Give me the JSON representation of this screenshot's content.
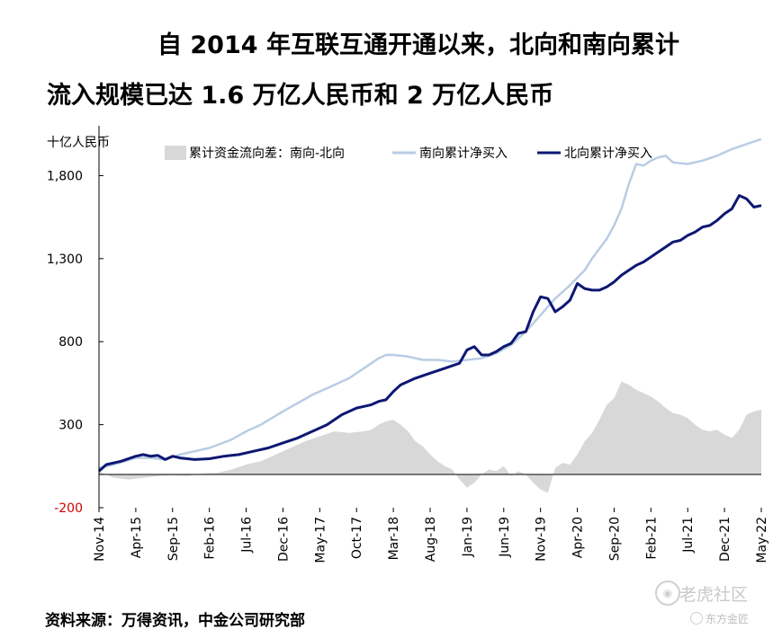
{
  "title_line1": "自 2014 年互联互通开通以来，北向和南向累计",
  "title_line2": "流入规模已达 1.6 万亿人民币和 2 万亿人民币",
  "source": "资料来源：万得资讯，中金公司研究部",
  "watermark": {
    "main": "老虎社区",
    "sub": "东方金匠"
  },
  "colors": {
    "south": "#b9cde4",
    "north": "#0d1773",
    "diff": "#d8d8d8",
    "axis": "#000000",
    "negative_label": "#d00000"
  },
  "chart_data": {
    "type": "line",
    "title": "自 2014 年互联互通开通以来，北向和南向累计流入规模已达 1.6 万亿人民币和 2 万亿人民币",
    "ylabel": "十亿人民币",
    "ylim": [
      -200,
      2100
    ],
    "yticks": [
      -200,
      300,
      800,
      1300,
      1800
    ],
    "ytick_labels": [
      "-200",
      "300",
      "800",
      "1,300",
      "1,800"
    ],
    "xlim": [
      0,
      90
    ],
    "x_tick_positions": [
      0,
      5,
      10,
      15,
      20,
      25,
      30,
      35,
      40,
      45,
      50,
      55,
      60,
      65,
      70,
      75,
      80,
      85,
      90
    ],
    "x_tick_labels": [
      "Nov-14",
      "Apr-15",
      "Sep-15",
      "Feb-16",
      "Jul-16",
      "Dec-16",
      "May-17",
      "Oct-17",
      "Mar-18",
      "Aug-18",
      "Jan-19",
      "Jun-19",
      "Nov-19",
      "Apr-20",
      "Sep-20",
      "Feb-21",
      "Jul-21",
      "Dec-21",
      "May-22"
    ],
    "legend": [
      "累计资金流向差：南向-北向",
      "南向累计净买入",
      "北向累计净买入"
    ],
    "series": [
      {
        "name": "南向累计净买入",
        "kind": "line",
        "x": [
          0,
          2,
          5,
          7,
          9,
          11,
          13,
          15,
          18,
          20,
          22,
          25,
          27,
          29,
          31,
          34,
          36,
          38,
          39,
          40,
          42,
          44,
          46,
          48,
          50,
          52,
          54,
          56,
          58,
          60,
          62,
          64,
          66,
          67,
          68,
          69,
          70,
          71,
          72,
          73,
          74,
          75,
          76,
          77,
          78,
          80,
          82,
          84,
          86,
          88,
          90
        ],
        "values": [
          40,
          60,
          100,
          100,
          90,
          120,
          140,
          160,
          210,
          260,
          300,
          380,
          430,
          480,
          520,
          580,
          640,
          700,
          720,
          720,
          710,
          690,
          690,
          680,
          690,
          700,
          730,
          780,
          860,
          960,
          1060,
          1140,
          1230,
          1300,
          1360,
          1420,
          1500,
          1600,
          1750,
          1870,
          1860,
          1890,
          1910,
          1920,
          1880,
          1870,
          1890,
          1920,
          1960,
          1990,
          2020
        ]
      },
      {
        "name": "北向累计净买入",
        "kind": "line",
        "x": [
          0,
          1,
          3,
          5,
          6,
          7,
          8,
          9,
          10,
          11,
          12,
          13,
          15,
          17,
          19,
          21,
          23,
          25,
          27,
          29,
          31,
          33,
          35,
          36,
          37,
          38,
          39,
          40,
          41,
          43,
          45,
          47,
          49,
          50,
          51,
          52,
          53,
          54,
          55,
          56,
          57,
          58,
          59,
          60,
          61,
          62,
          63,
          64,
          65,
          66,
          67,
          68,
          69,
          70,
          71,
          72,
          73,
          74,
          75,
          76,
          77,
          78,
          79,
          80,
          81,
          82,
          83,
          84,
          85,
          86,
          87,
          88,
          89,
          90
        ],
        "values": [
          20,
          60,
          80,
          110,
          120,
          110,
          115,
          90,
          110,
          100,
          95,
          90,
          95,
          110,
          120,
          140,
          160,
          190,
          220,
          260,
          300,
          360,
          400,
          410,
          420,
          440,
          450,
          500,
          540,
          580,
          610,
          640,
          670,
          750,
          770,
          720,
          720,
          740,
          770,
          790,
          850,
          860,
          980,
          1070,
          1060,
          980,
          1010,
          1050,
          1150,
          1120,
          1110,
          1110,
          1130,
          1160,
          1200,
          1230,
          1260,
          1280,
          1310,
          1340,
          1370,
          1400,
          1410,
          1440,
          1460,
          1490,
          1500,
          1530,
          1570,
          1600,
          1680,
          1660,
          1610,
          1620
        ]
      },
      {
        "name": "累计资金流向差：南向-北向",
        "kind": "area",
        "x": [
          0,
          2,
          4,
          6,
          8,
          10,
          12,
          14,
          16,
          18,
          20,
          22,
          24,
          26,
          28,
          30,
          32,
          34,
          36,
          37,
          38,
          39,
          40,
          41,
          42,
          43,
          44,
          45,
          46,
          47,
          48,
          49,
          50,
          51,
          52,
          53,
          54,
          55,
          56,
          57,
          58,
          59,
          60,
          61,
          62,
          63,
          64,
          65,
          66,
          67,
          68,
          69,
          70,
          71,
          72,
          73,
          74,
          75,
          76,
          77,
          78,
          79,
          80,
          81,
          82,
          83,
          84,
          85,
          86,
          87,
          88,
          89,
          90
        ],
        "values": [
          20,
          -20,
          -30,
          -20,
          -10,
          -5,
          -10,
          5,
          10,
          30,
          60,
          80,
          120,
          160,
          200,
          230,
          260,
          250,
          260,
          270,
          300,
          320,
          330,
          300,
          260,
          200,
          170,
          120,
          80,
          50,
          30,
          -30,
          -80,
          -50,
          0,
          30,
          20,
          50,
          -10,
          20,
          0,
          -50,
          -90,
          -110,
          40,
          70,
          60,
          120,
          200,
          250,
          330,
          420,
          460,
          560,
          540,
          510,
          490,
          470,
          440,
          400,
          370,
          360,
          340,
          300,
          270,
          260,
          270,
          240,
          220,
          270,
          360,
          380,
          390
        ]
      }
    ]
  }
}
